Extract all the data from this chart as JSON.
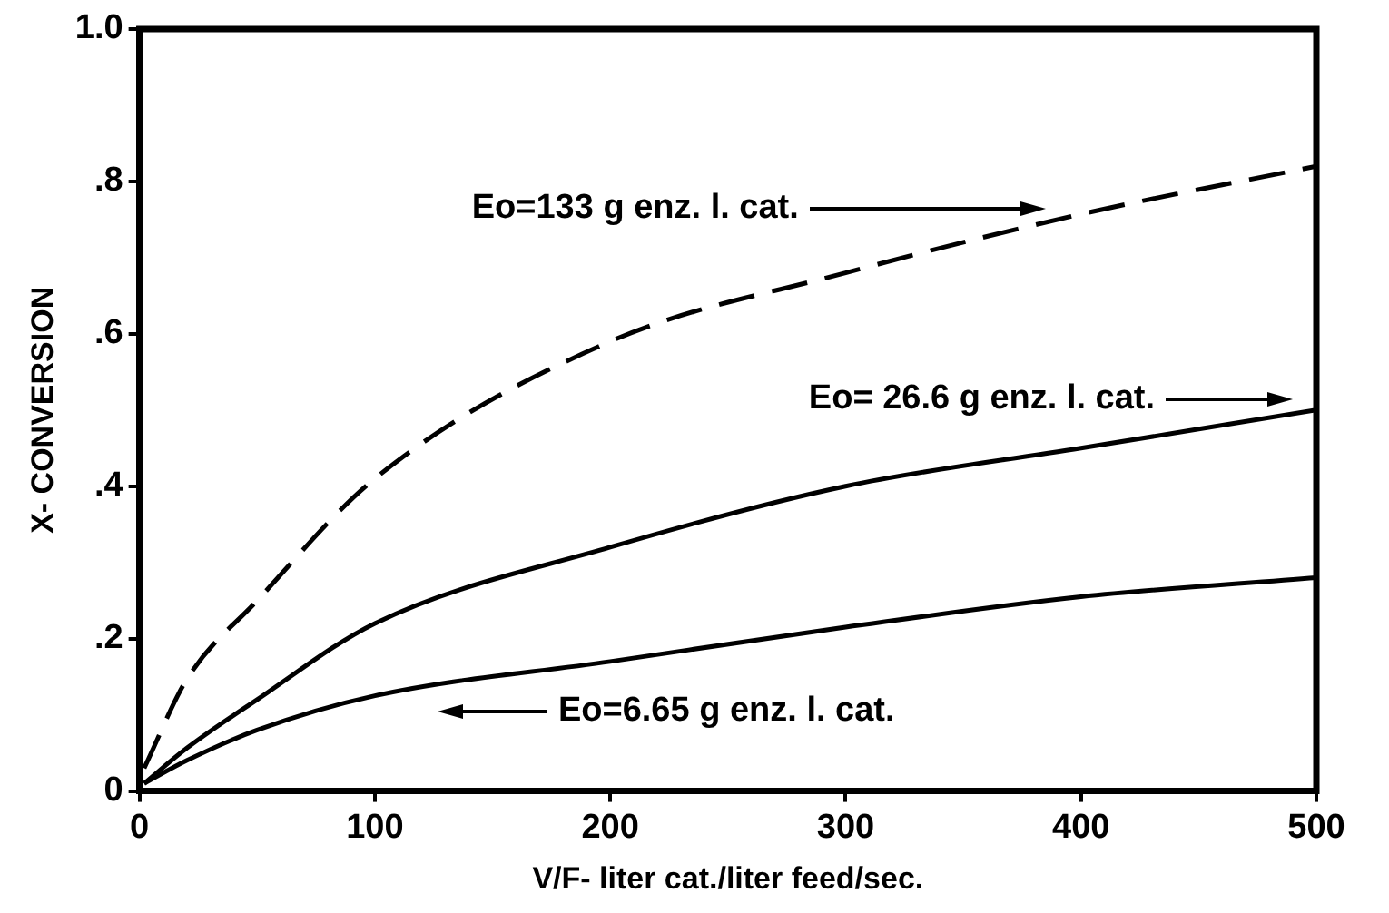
{
  "chart_data": {
    "type": "line",
    "xlabel": "V/F- liter cat./liter feed/sec.",
    "ylabel": "X- CONVERSION",
    "xlim": [
      0,
      500
    ],
    "xticks": [
      0,
      100,
      200,
      300,
      400,
      500
    ],
    "ylim": [
      0,
      1
    ],
    "yticks": [
      {
        "value": 0,
        "label": "0"
      },
      {
        "value": 0.2,
        "label": ".2"
      },
      {
        "value": 0.4,
        "label": ".4"
      },
      {
        "value": 0.6,
        "label": ".6"
      },
      {
        "value": 0.8,
        "label": ".8"
      },
      {
        "value": 1,
        "label": "1.0"
      }
    ],
    "grid": false,
    "legend": false,
    "marker": "none",
    "series": [
      {
        "color": "#000000",
        "line_style": "dashed",
        "x": [
          2,
          20,
          50,
          100,
          200,
          300,
          400,
          500
        ],
        "values": [
          0.03,
          0.146,
          0.25,
          0.41,
          0.59,
          0.68,
          0.757,
          0.82
        ]
      },
      {
        "color": "#000000",
        "line_style": "solid",
        "x": [
          2,
          20,
          50,
          100,
          200,
          300,
          400,
          500
        ],
        "values": [
          0.01,
          0.056,
          0.12,
          0.22,
          0.32,
          0.4,
          0.45,
          0.5
        ]
      },
      {
        "color": "#000000",
        "line_style": "solid",
        "x": [
          2,
          20,
          50,
          100,
          200,
          300,
          400,
          500
        ],
        "values": [
          0.01,
          0.04,
          0.08,
          0.125,
          0.17,
          0.215,
          0.255,
          0.28
        ]
      }
    ],
    "annotations": [
      "Eo=133 g enz. l. cat.",
      "Eo= 26.6 g enz. l. cat.",
      "Eo=6.65 g enz. l. cat."
    ]
  }
}
